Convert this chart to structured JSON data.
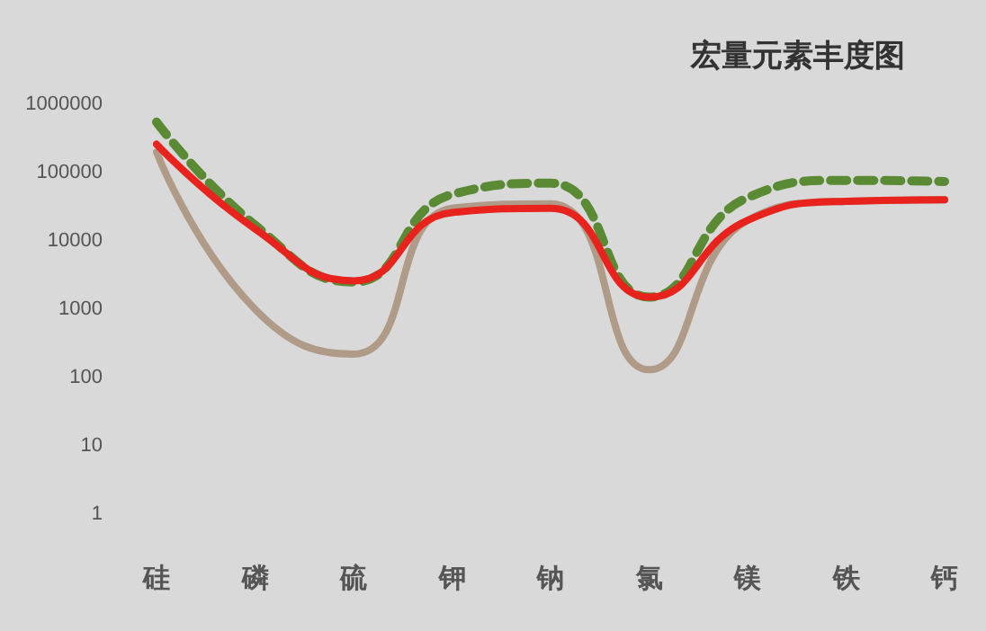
{
  "chart_data": {
    "type": "line",
    "title": "宏量元素丰度图",
    "categories": [
      "硅",
      "磷",
      "硫",
      "钾",
      "钠",
      "氯",
      "镁",
      "铁",
      "钙"
    ],
    "series": [
      {
        "color": "#b09a88",
        "values": [
          200000,
          1000,
          220,
          30000,
          35000,
          130,
          20000,
          38000,
          40000
        ],
        "line_style": "solid"
      },
      {
        "color": "#5b8a35",
        "values": [
          550000,
          17000,
          2500,
          48000,
          70000,
          1500,
          43000,
          77000,
          74000
        ],
        "line_style": "dashed"
      },
      {
        "color": "#e8231d",
        "values": [
          260000,
          15000,
          2600,
          26000,
          30000,
          1500,
          20000,
          38000,
          40000
        ],
        "line_style": "solid"
      }
    ],
    "log": "y",
    "ylim": [
      1,
      1000000
    ],
    "yticks": [
      1,
      10,
      100,
      1000,
      10000,
      100000,
      1000000
    ],
    "grid": false,
    "marker": "none"
  }
}
